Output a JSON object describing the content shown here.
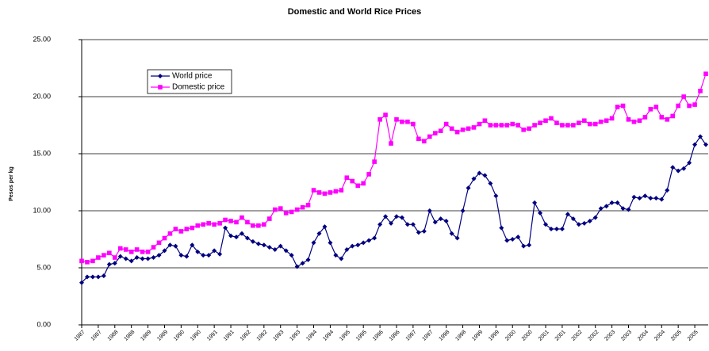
{
  "chart_data": {
    "type": "line",
    "title": "Domestic and World Rice Prices",
    "y_label": "Pesos per kg",
    "categories": [
      "1987",
      null,
      null,
      "1987",
      null,
      null,
      "1988",
      null,
      null,
      "1988",
      null,
      null,
      "1989",
      null,
      null,
      "1989",
      null,
      null,
      "1990",
      null,
      null,
      "1990",
      null,
      null,
      "1991",
      null,
      null,
      "1991",
      null,
      null,
      "1992",
      null,
      null,
      "1992",
      null,
      null,
      "1993",
      null,
      null,
      "1993",
      null,
      null,
      "1994",
      null,
      null,
      "1994",
      null,
      null,
      "1995",
      null,
      null,
      "1995",
      null,
      null,
      "1996",
      null,
      null,
      "1996",
      null,
      null,
      "1997",
      null,
      null,
      "1997",
      null,
      null,
      "1998",
      null,
      null,
      "1998",
      null,
      null,
      "1999",
      null,
      null,
      "1999",
      null,
      null,
      "2000",
      null,
      null,
      "2000",
      null,
      null,
      "2001",
      null,
      null,
      "2001",
      null,
      null,
      "2002",
      null,
      null,
      "2002",
      null,
      null,
      "2003",
      null,
      null,
      "2003",
      null,
      null,
      "2004",
      null,
      null,
      "2004",
      null,
      null,
      "2005",
      null,
      null,
      "2005",
      null,
      null
    ],
    "series": [
      {
        "name": "World price",
        "color": "#000080",
        "marker": "diamond",
        "values": [
          3.7,
          4.2,
          4.2,
          4.2,
          4.3,
          5.3,
          5.4,
          6.0,
          5.8,
          5.6,
          5.9,
          5.8,
          5.8,
          5.9,
          6.1,
          6.5,
          7.0,
          6.9,
          6.1,
          6.0,
          7.0,
          6.4,
          6.1,
          6.1,
          6.5,
          6.2,
          8.5,
          7.8,
          7.7,
          8.0,
          7.6,
          7.3,
          7.1,
          7.0,
          6.8,
          6.6,
          6.9,
          6.5,
          6.1,
          5.1,
          5.4,
          5.7,
          7.2,
          8.0,
          8.6,
          7.2,
          6.1,
          5.8,
          6.6,
          6.9,
          7.0,
          7.2,
          7.4,
          7.6,
          8.8,
          9.5,
          8.9,
          9.5,
          9.4,
          8.8,
          8.8,
          8.1,
          8.2,
          10.0,
          9.0,
          9.3,
          9.1,
          8.0,
          7.6,
          10.0,
          12.0,
          12.8,
          13.3,
          13.1,
          12.4,
          11.3,
          8.5,
          7.4,
          7.5,
          7.7,
          6.9,
          7.0,
          10.7,
          9.8,
          8.8,
          8.4,
          8.4,
          8.4,
          9.7,
          9.3,
          8.8,
          8.9,
          9.1,
          9.4,
          10.2,
          10.4,
          10.7,
          10.7,
          10.2,
          10.1,
          11.2,
          11.1,
          11.3,
          11.1,
          11.1,
          11.0,
          11.8,
          13.8,
          13.5,
          13.7,
          14.2,
          15.8,
          16.5,
          15.8
        ]
      },
      {
        "name": "Domestic price",
        "color": "#ff00ff",
        "marker": "square",
        "values": [
          5.6,
          5.5,
          5.6,
          5.9,
          6.1,
          6.3,
          5.9,
          6.7,
          6.6,
          6.4,
          6.6,
          6.4,
          6.4,
          6.8,
          7.2,
          7.6,
          8.0,
          8.4,
          8.2,
          8.4,
          8.5,
          8.7,
          8.8,
          8.9,
          8.8,
          8.9,
          9.2,
          9.1,
          9.0,
          9.4,
          9.0,
          8.7,
          8.7,
          8.8,
          9.3,
          10.1,
          10.2,
          9.8,
          9.9,
          10.1,
          10.3,
          10.5,
          11.8,
          11.6,
          11.5,
          11.6,
          11.7,
          11.8,
          12.9,
          12.6,
          12.2,
          12.4,
          13.2,
          14.3,
          18.0,
          18.4,
          15.9,
          18.0,
          17.8,
          17.8,
          17.6,
          16.3,
          16.1,
          16.5,
          16.8,
          17.0,
          17.6,
          17.2,
          16.9,
          17.1,
          17.2,
          17.3,
          17.6,
          17.9,
          17.5,
          17.5,
          17.5,
          17.5,
          17.6,
          17.5,
          17.1,
          17.2,
          17.5,
          17.7,
          17.9,
          18.1,
          17.7,
          17.5,
          17.5,
          17.5,
          17.7,
          17.9,
          17.6,
          17.6,
          17.8,
          17.9,
          18.1,
          19.1,
          19.2,
          18.0,
          17.8,
          17.9,
          18.2,
          18.9,
          19.1,
          18.2,
          18.0,
          18.3,
          19.2,
          20.0,
          19.2,
          19.3,
          20.5,
          22.0
        ]
      }
    ],
    "ylim": [
      0,
      25
    ],
    "yticks": [
      {
        "value": 0,
        "label": "0.00"
      },
      {
        "value": 5,
        "label": "5.00"
      },
      {
        "value": 10,
        "label": "10.00"
      },
      {
        "value": 15,
        "label": "15.00"
      },
      {
        "value": 20,
        "label": "20.00"
      },
      {
        "value": 25,
        "label": "25.00"
      }
    ],
    "grid": true,
    "legend": "upper left"
  }
}
